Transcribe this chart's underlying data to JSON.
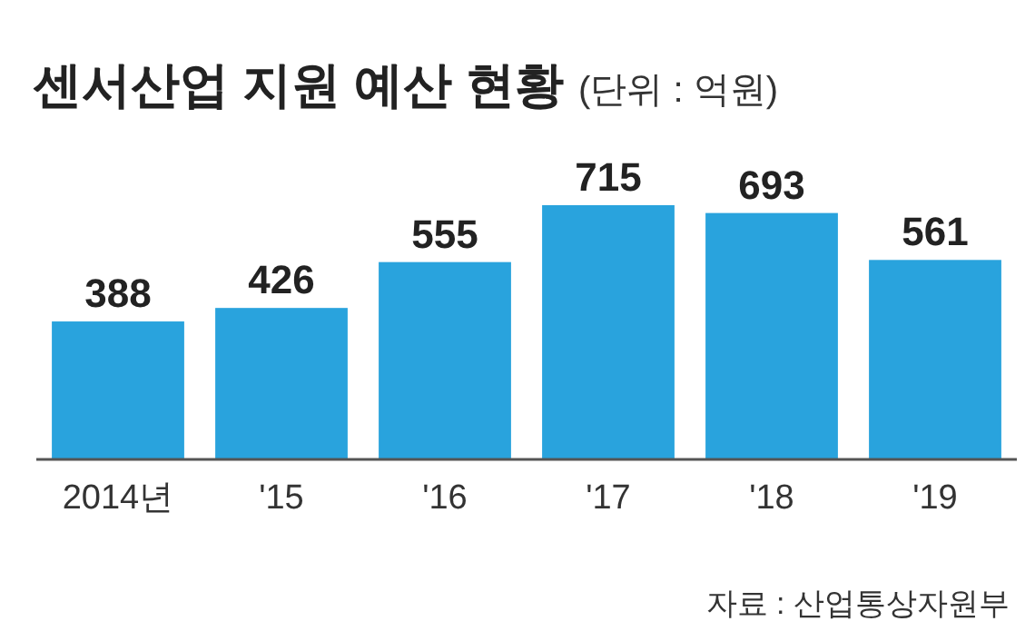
{
  "chart_data": {
    "type": "bar",
    "title": "센서산업 지원 예산 현황",
    "subtitle": "(단위 : 억원)",
    "categories": [
      "2014년",
      "'15",
      "'16",
      "'17",
      "'18",
      "'19"
    ],
    "values": [
      388,
      426,
      555,
      715,
      693,
      561
    ],
    "color": "#29a3dd",
    "data_labels": true,
    "annotations": [
      "자료 : 산업통상자원부"
    ]
  }
}
